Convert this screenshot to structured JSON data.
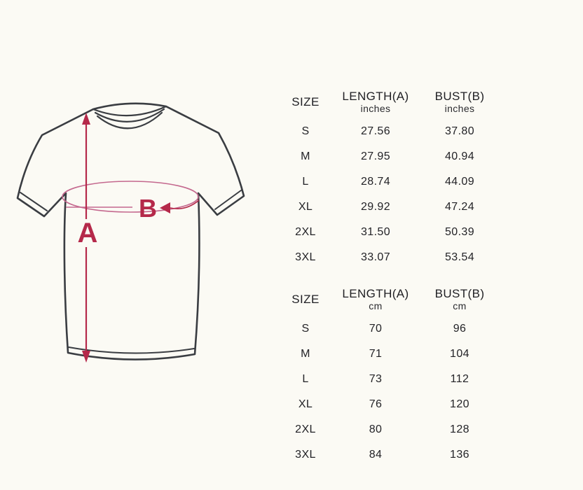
{
  "page": {
    "background": "#fbfaf4"
  },
  "diagram": {
    "length_label": "A",
    "bust_label": "B",
    "accent_color": "#b5294a",
    "ellipse_color": "#c4688e",
    "outline_color": "#3a3d42"
  },
  "tables": [
    {
      "id": "inches",
      "headers": {
        "size": "SIZE",
        "length": "LENGTH(A)",
        "bust": "BUST(B)",
        "unit": "inches"
      },
      "rows": [
        {
          "size": "S",
          "length": "27.56",
          "bust": "37.80"
        },
        {
          "size": "M",
          "length": "27.95",
          "bust": "40.94"
        },
        {
          "size": "L",
          "length": "28.74",
          "bust": "44.09"
        },
        {
          "size": "XL",
          "length": "29.92",
          "bust": "47.24"
        },
        {
          "size": "2XL",
          "length": "31.50",
          "bust": "50.39"
        },
        {
          "size": "3XL",
          "length": "33.07",
          "bust": "53.54"
        }
      ]
    },
    {
      "id": "cm",
      "headers": {
        "size": "SIZE",
        "length": "LENGTH(A)",
        "bust": "BUST(B)",
        "unit": "cm"
      },
      "rows": [
        {
          "size": "S",
          "length": "70",
          "bust": "96"
        },
        {
          "size": "M",
          "length": "71",
          "bust": "104"
        },
        {
          "size": "L",
          "length": "73",
          "bust": "112"
        },
        {
          "size": "XL",
          "length": "76",
          "bust": "120"
        },
        {
          "size": "2XL",
          "length": "80",
          "bust": "128"
        },
        {
          "size": "3XL",
          "length": "84",
          "bust": "136"
        }
      ]
    }
  ]
}
